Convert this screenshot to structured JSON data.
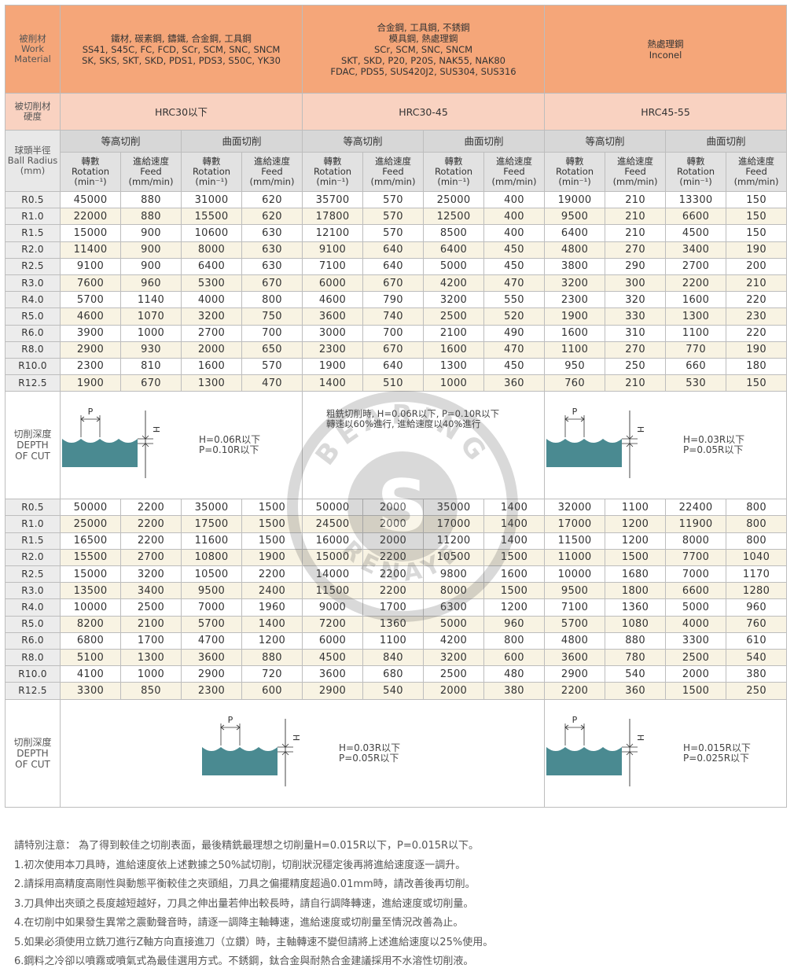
{
  "header": {
    "work_material_label": "被削材\nWork\nMaterial",
    "hardness_label": "被切削材\n硬度",
    "radius_label": "球頭半徑\nBall Radius\n(mm)",
    "depth_label": "切削深度\nDEPTH\nOF CUT",
    "groups": [
      {
        "material": "鐵材, 碳素鋼, 鑄鐵, 合金鋼, 工具鋼\nSS41, S45C, FC, FCD, SCr, SCM, SNC, SNCM\nSK, SKS, SKT, SKD, PDS1, PDS3, S50C, YK30",
        "hardness": "HRC30以下"
      },
      {
        "material": "合金鋼, 工具鋼, 不銹鋼\n模具鋼, 熱處理鋼\nSCr, SCM, SNC, SNCM\nSKT, SKD, P20, P20S, NAK55, NAK80\nFDAC, PDS5, SUS420J2, SUS304, SUS316",
        "hardness": "HRC30-45"
      },
      {
        "material": "熱處理鋼\nInconel",
        "hardness": "HRC45-55"
      }
    ],
    "method_contour": "等高切削",
    "method_surface": "曲面切削",
    "unit_rotation": "轉數\nRotation\n(min⁻¹)",
    "unit_feed": "進給速度\nFeed\n(mm/min)"
  },
  "radii": [
    "R0.5",
    "R1.0",
    "R1.5",
    "R2.0",
    "R2.5",
    "R3.0",
    "R4.0",
    "R5.0",
    "R6.0",
    "R8.0",
    "R10.0",
    "R12.5"
  ],
  "table1": [
    [
      "45000",
      "880",
      "31000",
      "620",
      "35700",
      "570",
      "25000",
      "400",
      "19000",
      "210",
      "13300",
      "150"
    ],
    [
      "22000",
      "880",
      "15500",
      "620",
      "17800",
      "570",
      "12500",
      "400",
      "9500",
      "210",
      "6600",
      "150"
    ],
    [
      "15000",
      "900",
      "10600",
      "630",
      "12100",
      "570",
      "8500",
      "400",
      "6400",
      "210",
      "4500",
      "150"
    ],
    [
      "11400",
      "900",
      "8000",
      "630",
      "9100",
      "640",
      "6400",
      "450",
      "4800",
      "270",
      "3400",
      "190"
    ],
    [
      "9100",
      "900",
      "6400",
      "630",
      "7100",
      "640",
      "5000",
      "450",
      "3800",
      "290",
      "2700",
      "200"
    ],
    [
      "7600",
      "960",
      "5300",
      "670",
      "6000",
      "670",
      "4200",
      "470",
      "3200",
      "300",
      "2200",
      "210"
    ],
    [
      "5700",
      "1140",
      "4000",
      "800",
      "4600",
      "790",
      "3200",
      "550",
      "2300",
      "320",
      "1600",
      "220"
    ],
    [
      "4600",
      "1070",
      "3200",
      "750",
      "3600",
      "740",
      "2500",
      "520",
      "1900",
      "330",
      "1300",
      "230"
    ],
    [
      "3900",
      "1000",
      "2700",
      "700",
      "3000",
      "700",
      "2100",
      "490",
      "1600",
      "310",
      "1100",
      "220"
    ],
    [
      "2900",
      "930",
      "2000",
      "650",
      "2300",
      "670",
      "1600",
      "470",
      "1100",
      "270",
      "770",
      "190"
    ],
    [
      "2300",
      "810",
      "1600",
      "570",
      "1900",
      "640",
      "1300",
      "450",
      "950",
      "250",
      "660",
      "180"
    ],
    [
      "1900",
      "670",
      "1300",
      "470",
      "1400",
      "510",
      "1000",
      "360",
      "760",
      "210",
      "530",
      "150"
    ]
  ],
  "table2": [
    [
      "50000",
      "2200",
      "35000",
      "1500",
      "50000",
      "2000",
      "35000",
      "1400",
      "32000",
      "1100",
      "22400",
      "800"
    ],
    [
      "25000",
      "2200",
      "17500",
      "1500",
      "24500",
      "2000",
      "17000",
      "1400",
      "17000",
      "1200",
      "11900",
      "800"
    ],
    [
      "16500",
      "2200",
      "11600",
      "1500",
      "16000",
      "2000",
      "11200",
      "1400",
      "11500",
      "1200",
      "8000",
      "800"
    ],
    [
      "15500",
      "2700",
      "10800",
      "1900",
      "15000",
      "2200",
      "10500",
      "1500",
      "11000",
      "1500",
      "7700",
      "1040"
    ],
    [
      "15000",
      "3200",
      "10500",
      "2200",
      "14000",
      "2200",
      "9800",
      "1600",
      "10000",
      "1680",
      "7000",
      "1170"
    ],
    [
      "13500",
      "3400",
      "9500",
      "2400",
      "11500",
      "2200",
      "8000",
      "1500",
      "9500",
      "1800",
      "6600",
      "1280"
    ],
    [
      "10000",
      "2500",
      "7000",
      "1960",
      "9000",
      "1700",
      "6300",
      "1200",
      "7100",
      "1360",
      "5000",
      "960"
    ],
    [
      "8200",
      "2100",
      "5700",
      "1400",
      "7200",
      "1360",
      "5000",
      "960",
      "5700",
      "1080",
      "4000",
      "760"
    ],
    [
      "6800",
      "1700",
      "4700",
      "1200",
      "6000",
      "1100",
      "4200",
      "800",
      "4800",
      "880",
      "3300",
      "610"
    ],
    [
      "5100",
      "1300",
      "3600",
      "880",
      "4500",
      "840",
      "3200",
      "600",
      "3600",
      "780",
      "2500",
      "540"
    ],
    [
      "4100",
      "1000",
      "2900",
      "720",
      "3600",
      "680",
      "2500",
      "480",
      "2900",
      "540",
      "2000",
      "380"
    ],
    [
      "3300",
      "850",
      "2300",
      "600",
      "2900",
      "540",
      "2000",
      "380",
      "2200",
      "360",
      "1500",
      "250"
    ]
  ],
  "depth1": {
    "g1": "H=0.06R以下\nP=0.10R以下",
    "g2": "粗銑切削時, H=0.06R以下, P=0.10R以下\n轉速以60%進行, 進給速度以40%進行",
    "g3": "H=0.03R以下\nP=0.05R以下"
  },
  "depth2": {
    "g12": "H=0.03R以下\nP=0.05R以下",
    "g3": "H=0.015R以下\nP=0.025R以下"
  },
  "diagram_labels": {
    "p": "P",
    "h": "H"
  },
  "watermark": {
    "top_text": "BEARING",
    "bottom_text": "RENAYE",
    "letter": "S"
  },
  "notes": [
    "請特別注意： 為了得到較佳之切削表面，最後精銑最理想之切削量H=0.015R以下，P=0.015R以下。",
    "1.初次使用本刀具時，進給速度依上述數據之50%試切削，切削狀況穩定後再將進給速度逐一調升。",
    "2.請採用高精度高剛性與動態平衡較佳之夾頭組，刀具之偏擺精度超過0.01mm時，請改善後再切削。",
    "3.刀具伸出夾頭之長度越短越好，刀具之伸出量若伸出較長時，請自行調降轉速，進給速度或切削量。",
    "4.在切削中如果發生異常之震動聲音時，請逐一調降主軸轉速，進給速度或切削量至情況改善為止。",
    "5.如果必須使用立銑刀進行Z軸方向直接進刀（立鑽）時，主軸轉速不變但請將上述進給速度以25%使用。",
    "6.鋼料之冷卻以噴霧或噴氣式為最佳選用方式。不銹鋼，鈦合金與耐熱合金建議採用不水溶性切削液。"
  ]
}
